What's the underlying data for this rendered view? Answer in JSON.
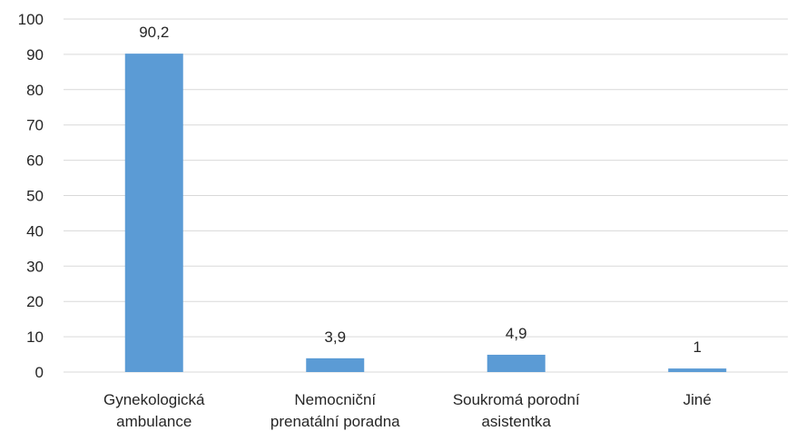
{
  "chart_data": {
    "type": "bar",
    "categories": [
      [
        "Gynekologická",
        "ambulance"
      ],
      [
        "Nemocniční",
        "prenatální poradna"
      ],
      [
        "Soukromá porodní",
        "asistentka"
      ],
      [
        "Jiné"
      ]
    ],
    "values": [
      90.2,
      3.9,
      4.9,
      1
    ],
    "data_labels": [
      "90,2",
      "3,9",
      "4,9",
      "1"
    ],
    "y_ticks": [
      "0",
      "10",
      "20",
      "30",
      "40",
      "50",
      "60",
      "70",
      "80",
      "90",
      "100"
    ],
    "ylim": [
      0,
      100
    ],
    "grid": true,
    "legend": "none",
    "bar_color": "#5b9bd5",
    "grid_color": "#d9d9d9"
  }
}
